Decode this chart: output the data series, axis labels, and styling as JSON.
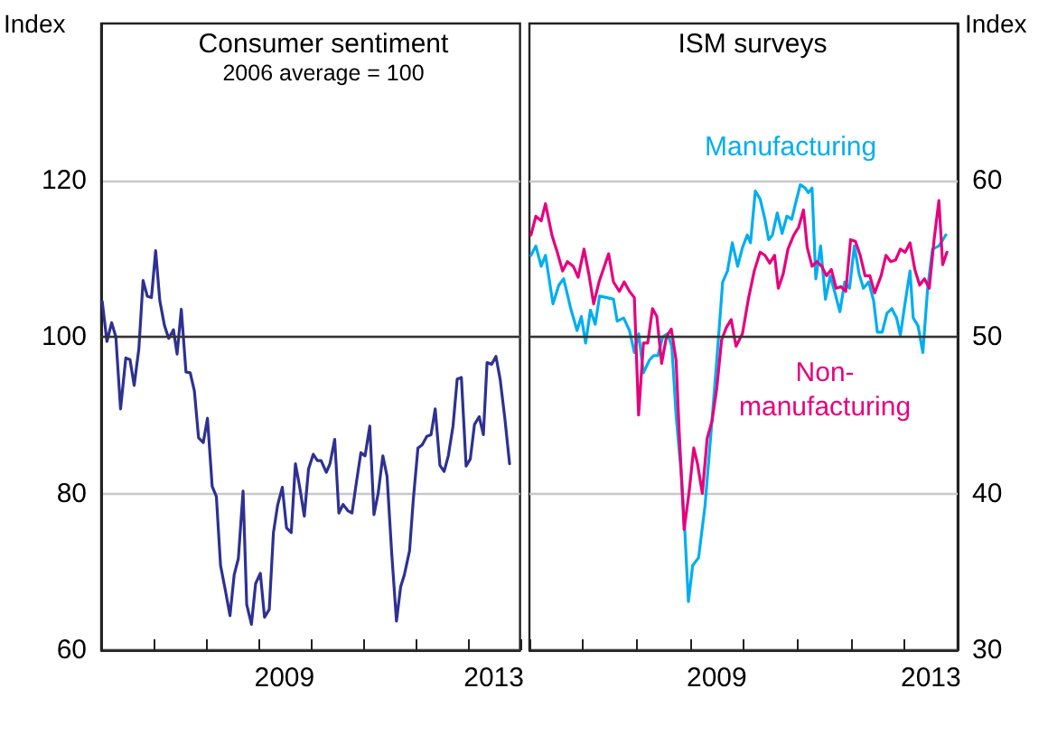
{
  "chart_data": [
    {
      "type": "line",
      "title": "Consumer sentiment",
      "subtitle": "2006 average = 100",
      "ylabel": "Index",
      "xlim": [
        2006,
        2014
      ],
      "xticks": [
        {
          "value": 2006,
          "label": null
        },
        {
          "value": 2007,
          "label": null
        },
        {
          "value": 2008,
          "label": null
        },
        {
          "value": 2009,
          "label": null
        },
        {
          "value": 2009.5,
          "label": "2009"
        },
        {
          "value": 2010,
          "label": null
        },
        {
          "value": 2011,
          "label": null
        },
        {
          "value": 2012,
          "label": null
        },
        {
          "value": 2013,
          "label": null
        },
        {
          "value": 2013.5,
          "label": "2013"
        },
        {
          "value": 2014,
          "label": null
        }
      ],
      "ylim": [
        60,
        140
      ],
      "yticks": [
        60,
        80,
        100,
        120
      ],
      "grid": "y",
      "legend": false,
      "ref_lines": [
        {
          "axis": "y",
          "value": 100,
          "color": "#333333"
        }
      ],
      "series": [
        {
          "color": "#2e3192",
          "x": [
            2006.02,
            2006.11,
            2006.2,
            2006.28,
            2006.37,
            2006.47,
            2006.55,
            2006.63,
            2006.72,
            2006.8,
            2006.88,
            2006.96,
            2007.04,
            2007.12,
            2007.21,
            2007.29,
            2007.38,
            2007.45,
            2007.53,
            2007.62,
            2007.7,
            2007.78,
            2007.86,
            2007.95,
            2008.03,
            2008.12,
            2008.2,
            2008.28,
            2008.37,
            2008.46,
            2008.54,
            2008.62,
            2008.71,
            2008.78,
            2008.87,
            2008.95,
            2009.04,
            2009.12,
            2009.21,
            2009.29,
            2009.37,
            2009.46,
            2009.54,
            2009.63,
            2009.71,
            2009.79,
            2009.88,
            2009.96,
            2010.05,
            2010.13,
            2010.2,
            2010.3,
            2010.37,
            2010.46,
            2010.54,
            2010.62,
            2010.71,
            2010.79,
            2010.87,
            2010.96,
            2011.04,
            2011.13,
            2011.21,
            2011.29,
            2011.38,
            2011.46,
            2011.55,
            2011.64,
            2011.72,
            2011.79,
            2011.89,
            2011.96,
            2012.05,
            2012.13,
            2012.22,
            2012.3,
            2012.38,
            2012.47,
            2012.55,
            2012.63,
            2012.72,
            2012.8,
            2012.88,
            2012.97,
            2013.05,
            2013.13,
            2013.22,
            2013.3,
            2013.37,
            2013.46,
            2013.54,
            2013.62,
            2013.71,
            2013.8
          ],
          "values": [
            104.5,
            99.4,
            101.8,
            100,
            90.8,
            97.3,
            97.1,
            93.8,
            98.5,
            107.2,
            105.2,
            105,
            111,
            104.6,
            101.4,
            99.8,
            100.9,
            97.8,
            103.5,
            95.5,
            95.4,
            93.1,
            87.1,
            86.5,
            89.6,
            80.9,
            79.6,
            70.8,
            67.7,
            64.4,
            69.6,
            71.7,
            80.3,
            65.8,
            63.3,
            68.5,
            69.8,
            64.2,
            65.2,
            75,
            78.5,
            80.8,
            75.6,
            75,
            83.8,
            80.9,
            77.1,
            83.1,
            85,
            84.2,
            84.2,
            82.7,
            83.8,
            86.9,
            77.5,
            78.6,
            77.8,
            77.5,
            81.2,
            85.2,
            84.8,
            88.6,
            77.3,
            80,
            84.8,
            82.2,
            72.3,
            63.7,
            68.1,
            69.6,
            72.7,
            79.1,
            85.8,
            86.2,
            87.3,
            87.5,
            90.8,
            83.6,
            82.8,
            84.8,
            88.6,
            94.6,
            94.8,
            83.5,
            84.4,
            88.8,
            89.8,
            87.5,
            96.7,
            96.5,
            97.5,
            94.6,
            89.6,
            83.8
          ]
        }
      ]
    },
    {
      "type": "line",
      "title": "ISM surveys",
      "ylabel": "Index",
      "xlim": [
        2006,
        2014
      ],
      "xticks": [
        {
          "value": 2006,
          "label": null
        },
        {
          "value": 2007,
          "label": null
        },
        {
          "value": 2008,
          "label": null
        },
        {
          "value": 2009,
          "label": null
        },
        {
          "value": 2009.5,
          "label": "2009"
        },
        {
          "value": 2010,
          "label": null
        },
        {
          "value": 2011,
          "label": null
        },
        {
          "value": 2012,
          "label": null
        },
        {
          "value": 2013,
          "label": null
        },
        {
          "value": 2013.5,
          "label": "2013"
        },
        {
          "value": 2014,
          "label": null
        }
      ],
      "ylim": [
        30,
        70
      ],
      "yticks": [
        30,
        40,
        50,
        60
      ],
      "grid": "y",
      "legend": false,
      "ref_lines": [
        {
          "axis": "y",
          "value": 50,
          "color": "#333333"
        }
      ],
      "series": [
        {
          "name": "Manufacturing",
          "color": "#00aeef",
          "x": [
            2006.03,
            2006.12,
            2006.22,
            2006.3,
            2006.44,
            2006.55,
            2006.64,
            2006.78,
            2006.89,
            2006.97,
            2007.05,
            2007.14,
            2007.23,
            2007.31,
            2007.45,
            2007.57,
            2007.64,
            2007.76,
            2007.87,
            2007.96,
            2008.04,
            2008.13,
            2008.24,
            2008.32,
            2008.4,
            2008.49,
            2008.58,
            2008.66,
            2008.74,
            2008.83,
            2008.89,
            2008.97,
            2009.05,
            2009.16,
            2009.28,
            2009.39,
            2009.5,
            2009.61,
            2009.7,
            2009.79,
            2009.89,
            2009.98,
            2010.07,
            2010.13,
            2010.22,
            2010.31,
            2010.4,
            2010.47,
            2010.54,
            2010.63,
            2010.72,
            2010.81,
            2010.9,
            2010.97,
            2011.06,
            2011.15,
            2011.21,
            2011.28,
            2011.35,
            2011.44,
            2011.53,
            2011.62,
            2011.7,
            2011.8,
            2011.89,
            2011.98,
            2012.07,
            2012.16,
            2012.24,
            2012.34,
            2012.43,
            2012.5,
            2012.59,
            2012.68,
            2012.77,
            2012.86,
            2012.93,
            2013.02,
            2013.11,
            2013.17,
            2013.26,
            2013.35,
            2013.44,
            2013.53,
            2013.65,
            2013.78
          ],
          "values": [
            55.2,
            55.8,
            54.5,
            55.2,
            52.1,
            53.3,
            53.7,
            51.7,
            50.4,
            51.3,
            49.6,
            51.7,
            50.8,
            52.6,
            52.5,
            52.4,
            51,
            51.2,
            50.4,
            49,
            50.2,
            47.7,
            48.5,
            48.8,
            48.8,
            50,
            50.2,
            49.4,
            45,
            41.5,
            38.5,
            33.1,
            35.4,
            35.9,
            39.2,
            43.8,
            48.5,
            53.5,
            54.2,
            56,
            54.5,
            55.7,
            56.5,
            56,
            59.3,
            58.8,
            57.5,
            56.2,
            56.5,
            57.9,
            56.6,
            57.7,
            57.5,
            58.5,
            59.7,
            59.5,
            59.2,
            59.5,
            53.7,
            55.8,
            52.4,
            53.9,
            52.9,
            51.6,
            53.5,
            53.1,
            55.8,
            54,
            53.1,
            53.5,
            52.3,
            50.3,
            50.3,
            51.5,
            51.8,
            51.2,
            50.1,
            52.2,
            54.2,
            51.2,
            50.7,
            49,
            53.1,
            55.6,
            55.8,
            56.5
          ]
        },
        {
          "name": "Non-manufacturing",
          "color": "#e6007e",
          "x": [
            2006.03,
            2006.12,
            2006.22,
            2006.3,
            2006.42,
            2006.52,
            2006.62,
            2006.71,
            2006.82,
            2006.91,
            2007.02,
            2007.11,
            2007.2,
            2007.3,
            2007.39,
            2007.48,
            2007.57,
            2007.68,
            2007.77,
            2007.87,
            2007.96,
            2008.04,
            2008.13,
            2008.21,
            2008.3,
            2008.38,
            2008.47,
            2008.56,
            2008.65,
            2008.74,
            2008.8,
            2008.89,
            2008.98,
            2009.07,
            2009.14,
            2009.23,
            2009.32,
            2009.41,
            2009.5,
            2009.59,
            2009.68,
            2009.77,
            2009.86,
            2009.98,
            2010.09,
            2010.2,
            2010.31,
            2010.4,
            2010.49,
            2010.58,
            2010.65,
            2010.74,
            2010.83,
            2010.94,
            2011.03,
            2011.12,
            2011.19,
            2011.28,
            2011.37,
            2011.46,
            2011.55,
            2011.64,
            2011.73,
            2011.82,
            2011.91,
            2012,
            2012.09,
            2012.18,
            2012.27,
            2012.36,
            2012.45,
            2012.57,
            2012.66,
            2012.75,
            2012.84,
            2012.93,
            2013.02,
            2013.11,
            2013.2,
            2013.29,
            2013.38,
            2013.47,
            2013.56,
            2013.65,
            2013.72,
            2013.8
          ],
          "values": [
            56.5,
            57.7,
            57.4,
            58.5,
            56.5,
            55.4,
            54.2,
            54.8,
            54.5,
            53.8,
            55.6,
            54,
            52.1,
            53.5,
            54.4,
            55.3,
            53.5,
            52.9,
            53.5,
            52.9,
            52.5,
            45,
            49.6,
            49.6,
            51.8,
            51.3,
            48.3,
            50,
            50.5,
            48.5,
            43.8,
            37.7,
            40,
            42.9,
            41.9,
            40,
            43.5,
            44.6,
            46.7,
            49.8,
            50.6,
            51.1,
            49.4,
            50.2,
            52.4,
            54.2,
            55.4,
            55.2,
            54.7,
            55.2,
            53.1,
            54,
            55.6,
            56.5,
            57,
            58.1,
            55.7,
            54.5,
            54.8,
            54.5,
            53.9,
            54.3,
            53.1,
            53.2,
            52.9,
            56.2,
            56.1,
            55.2,
            53.9,
            53.9,
            52.8,
            53.9,
            55.2,
            54.8,
            54.9,
            55.6,
            55.4,
            56,
            54.3,
            53.3,
            53.7,
            53.1,
            56.2,
            58.7,
            54.6,
            55.4
          ]
        }
      ]
    }
  ]
}
